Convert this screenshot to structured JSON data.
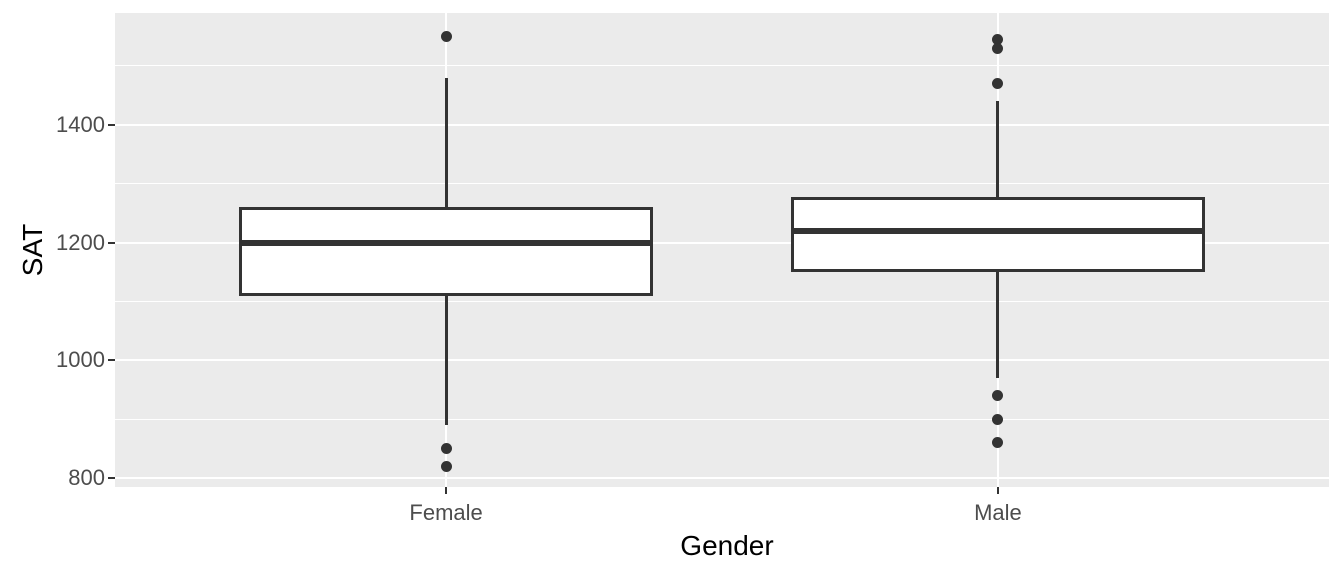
{
  "chart_data": {
    "type": "boxplot",
    "title": "",
    "xlabel": "Gender",
    "ylabel": "SAT",
    "categories": [
      "Female",
      "Male"
    ],
    "yticks": [
      800,
      1000,
      1200,
      1400
    ],
    "ytick_labels": [
      "800",
      "1000",
      "1200",
      "1400"
    ],
    "minor_yticks": [
      900,
      1100,
      1300,
      1500
    ],
    "ylim": [
      785,
      1590
    ],
    "legend": "none",
    "grid": {
      "horizontal_major": true,
      "horizontal_minor": true,
      "vertical_at_categories": true
    },
    "boxes": [
      {
        "category": "Female",
        "whisker_low": 890,
        "q1": 1110,
        "median": 1200,
        "q3": 1260,
        "whisker_high": 1480,
        "outliers": [
          1550,
          850,
          820
        ]
      },
      {
        "category": "Male",
        "whisker_low": 970,
        "q1": 1150,
        "median": 1220,
        "q3": 1277,
        "whisker_high": 1440,
        "outliers": [
          1545,
          1530,
          1470,
          940,
          900,
          860
        ]
      }
    ],
    "colors": {
      "panel_background": "#EBEBEB",
      "gridline": "#FFFFFF",
      "box_outline": "#333333",
      "box_fill": "#FFFFFF",
      "median": "#333333",
      "outlier": "#333333",
      "tick_mark": "#333333",
      "axis_text": "#4D4D4D",
      "axis_title": "#000000",
      "figure_background": "#FFFFFF"
    }
  }
}
